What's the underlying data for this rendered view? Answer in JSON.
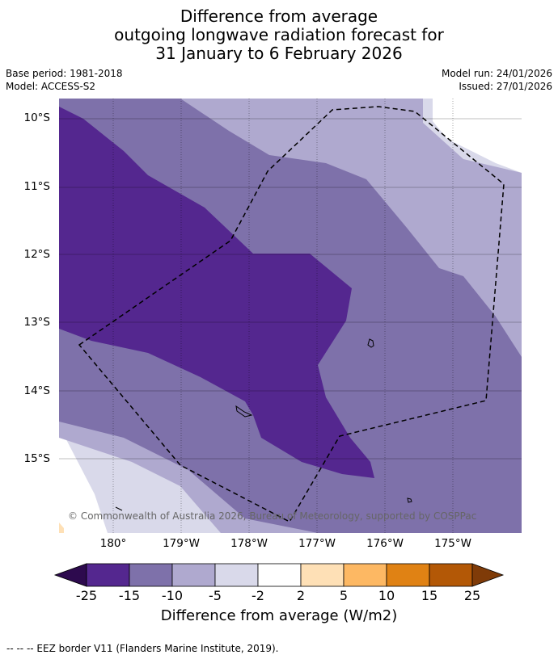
{
  "title": {
    "line1": "Difference from average",
    "line2": "outgoing longwave radiation forecast for",
    "line3": "31 January to 6 February 2026"
  },
  "meta": {
    "base_period": "Base period: 1981-2018",
    "model": "Model: ACCESS-S2",
    "model_run": "Model run: 24/01/2026",
    "issued": "Issued: 27/01/2026"
  },
  "map": {
    "lat_labels": [
      "10°S",
      "11°S",
      "12°S",
      "13°S",
      "14°S",
      "15°S"
    ],
    "lon_labels": [
      "180°",
      "179°W",
      "178°W",
      "177°W",
      "176°W",
      "175°W"
    ],
    "copyright": "© Commonwealth of Australia 2026, Bureau of Meteorology, supported by COSPPac"
  },
  "colorbar": {
    "ticks": [
      "-25",
      "-15",
      "-10",
      "-5",
      "-2",
      "2",
      "5",
      "10",
      "15",
      "25"
    ],
    "colors": {
      "extend_low": "#2d0a4e",
      "lt_m15": "#54278f",
      "m15_m10": "#7e71aa",
      "m10_m5": "#afa9cf",
      "m5_m2": "#d9d9ea",
      "m2_p2": "#ffffff",
      "p2_p5": "#fee0b6",
      "p5_p10": "#fdb863",
      "p10_p15": "#e08214",
      "p15_p25": "#b35806",
      "extend_high": "#7f3b08"
    },
    "title": "Difference from average (W/m2)"
  },
  "footer": {
    "legend": "--  --  -- EEZ border V11 (Flanders Marine Institute, 2019)."
  }
}
